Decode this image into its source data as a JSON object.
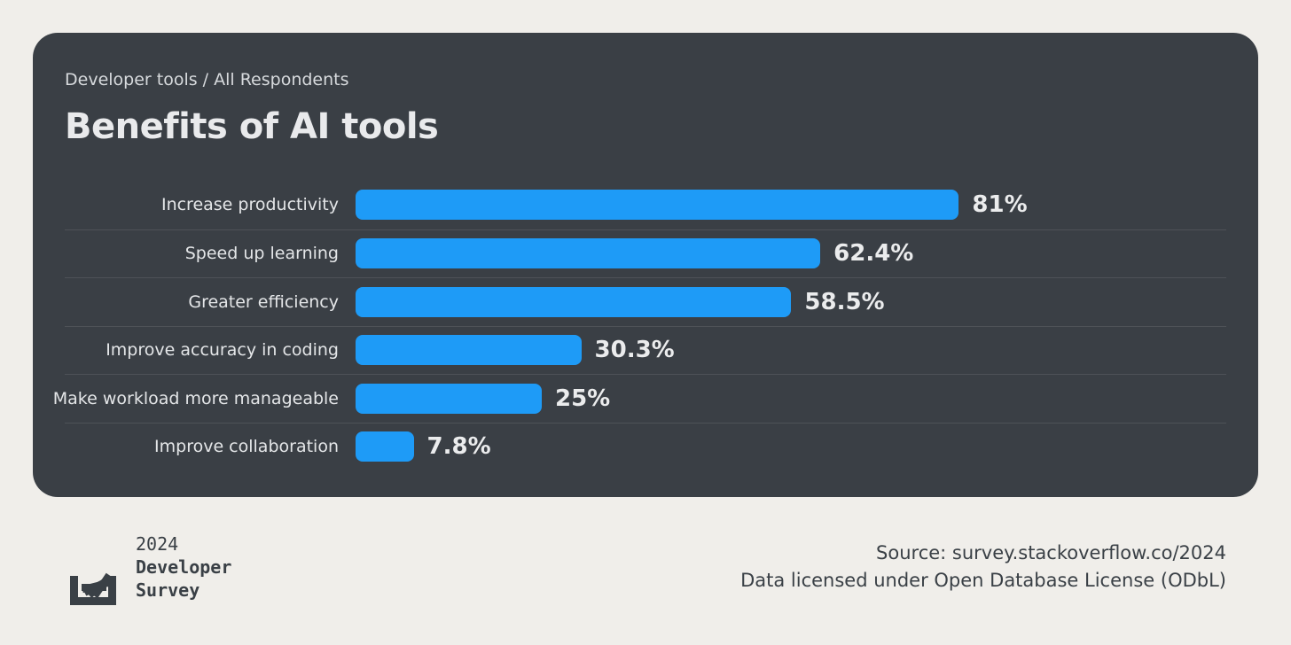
{
  "page": {
    "background_color": "#f0eeea"
  },
  "card": {
    "background_color": "#3a3f45",
    "subtitle": "Developer tools / All Respondents",
    "title": "Benefits of AI tools"
  },
  "chart_data": {
    "type": "bar",
    "orientation": "horizontal",
    "title": "Benefits of AI tools",
    "subtitle": "Developer tools / All Respondents",
    "categories": [
      "Increase productivity",
      "Speed up learning",
      "Greater efficiency",
      "Improve accuracy in coding",
      "Make workload more manageable",
      "Improve collaboration"
    ],
    "values": [
      81,
      62.4,
      58.5,
      30.3,
      25,
      7.8
    ],
    "value_labels": [
      "81%",
      "62.4%",
      "58.5%",
      "30.3%",
      "25%",
      "7.8%"
    ],
    "xlim": [
      0,
      100
    ],
    "bar_color": "#1e9bf7",
    "grid": false,
    "legend_position": "none",
    "row_divider_color": "rgba(255,255,255,0.10)"
  },
  "footer": {
    "logo": "stack-overflow-logo",
    "brand_lines": [
      "2024",
      "Developer",
      "Survey"
    ],
    "source_line1": "Source: survey.stackoverflow.co/2024",
    "source_line2": "Data licensed under Open Database License (ODbL)",
    "text_color": "#3a4046"
  }
}
